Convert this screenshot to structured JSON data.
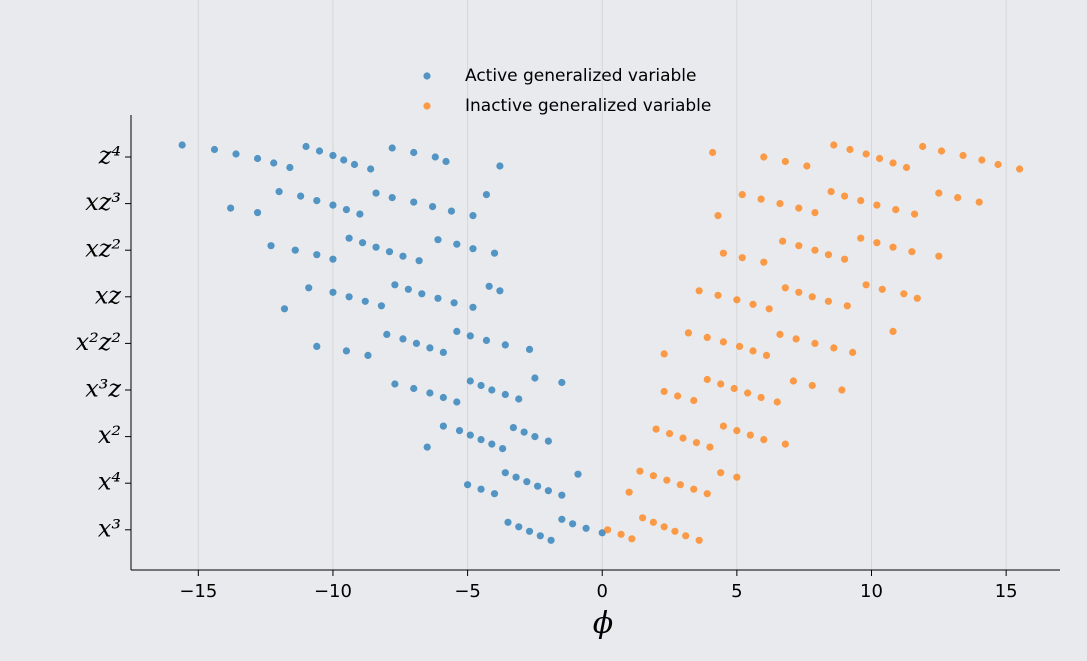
{
  "chart_data": {
    "type": "strip",
    "xlabel": "ϕ",
    "categories": [
      "z⁴",
      "xz³",
      "xz²",
      "xz",
      "x²z²",
      "x³z",
      "x²",
      "x⁴",
      "x³"
    ],
    "series": [
      {
        "name": "Active generalized variable",
        "color": "#1f77b4",
        "values": [
          [
            -15.6,
            -14.4,
            -13.6,
            -12.8,
            -12.2,
            -11.6,
            -11.0,
            -10.5,
            -10.0,
            -9.6,
            -9.2,
            -8.6,
            -7.8,
            -7.0,
            -6.2,
            -5.8,
            -3.8
          ],
          [
            -13.8,
            -12.8,
            -12.0,
            -11.2,
            -10.6,
            -10.0,
            -9.5,
            -9.0,
            -8.4,
            -7.8,
            -7.0,
            -6.3,
            -5.6,
            -4.8,
            -4.3
          ],
          [
            -12.3,
            -11.4,
            -10.6,
            -10.0,
            -9.4,
            -8.9,
            -8.4,
            -7.9,
            -7.4,
            -6.8,
            -6.1,
            -5.4,
            -4.8,
            -4.0
          ],
          [
            -11.8,
            -10.9,
            -10.0,
            -9.4,
            -8.8,
            -8.2,
            -7.7,
            -7.2,
            -6.7,
            -6.1,
            -5.5,
            -4.8,
            -4.2,
            -3.8
          ],
          [
            -10.6,
            -9.5,
            -8.7,
            -8.0,
            -7.4,
            -6.9,
            -6.4,
            -5.9,
            -5.4,
            -4.9,
            -4.3,
            -3.6,
            -2.7
          ],
          [
            -7.7,
            -7.0,
            -6.4,
            -5.9,
            -5.4,
            -4.9,
            -4.5,
            -4.1,
            -3.6,
            -3.1,
            -2.5,
            -1.5
          ],
          [
            -6.5,
            -5.9,
            -5.3,
            -4.9,
            -4.5,
            -4.1,
            -3.7,
            -3.3,
            -2.9,
            -2.5,
            -2.0
          ],
          [
            -5.0,
            -4.5,
            -4.0,
            -3.6,
            -3.2,
            -2.8,
            -2.4,
            -2.0,
            -1.5,
            -0.9
          ],
          [
            -3.5,
            -3.1,
            -2.7,
            -2.3,
            -1.9,
            -1.5,
            -1.1,
            -0.6,
            0.0
          ]
        ]
      },
      {
        "name": "Inactive generalized variable",
        "color": "#ff7f0e",
        "values": [
          [
            4.1,
            6.0,
            6.8,
            7.6,
            8.6,
            9.2,
            9.8,
            10.3,
            10.8,
            11.3,
            11.9,
            12.6,
            13.4,
            14.1,
            14.7,
            15.5
          ],
          [
            4.3,
            5.2,
            5.9,
            6.6,
            7.3,
            7.9,
            8.5,
            9.0,
            9.6,
            10.2,
            10.9,
            11.6,
            12.5,
            13.2,
            14.0
          ],
          [
            4.5,
            5.2,
            6.0,
            6.7,
            7.3,
            7.9,
            8.4,
            9.0,
            9.6,
            10.2,
            10.8,
            11.5,
            12.5
          ],
          [
            3.6,
            4.3,
            5.0,
            5.6,
            6.2,
            6.8,
            7.3,
            7.8,
            8.4,
            9.1,
            9.8,
            10.4,
            11.2,
            11.7
          ],
          [
            2.3,
            3.2,
            3.9,
            4.5,
            5.1,
            5.6,
            6.1,
            6.6,
            7.2,
            7.9,
            8.6,
            9.3,
            10.8
          ],
          [
            2.3,
            2.8,
            3.4,
            3.9,
            4.4,
            4.9,
            5.4,
            5.9,
            6.5,
            7.1,
            7.8,
            8.9
          ],
          [
            2.0,
            2.5,
            3.0,
            3.5,
            4.0,
            4.5,
            5.0,
            5.5,
            6.0,
            6.8
          ],
          [
            1.0,
            1.4,
            1.9,
            2.4,
            2.9,
            3.4,
            3.9,
            4.4,
            5.0
          ],
          [
            0.2,
            0.7,
            1.1,
            1.5,
            1.9,
            2.3,
            2.7,
            3.1,
            3.6
          ]
        ]
      }
    ],
    "xlim": [
      -17.5,
      17
    ],
    "xticks": [
      {
        "value": -15,
        "label": "−15"
      },
      {
        "value": -10,
        "label": "−10"
      },
      {
        "value": -5,
        "label": "−5"
      },
      0,
      5,
      10,
      15
    ],
    "grid": true
  }
}
